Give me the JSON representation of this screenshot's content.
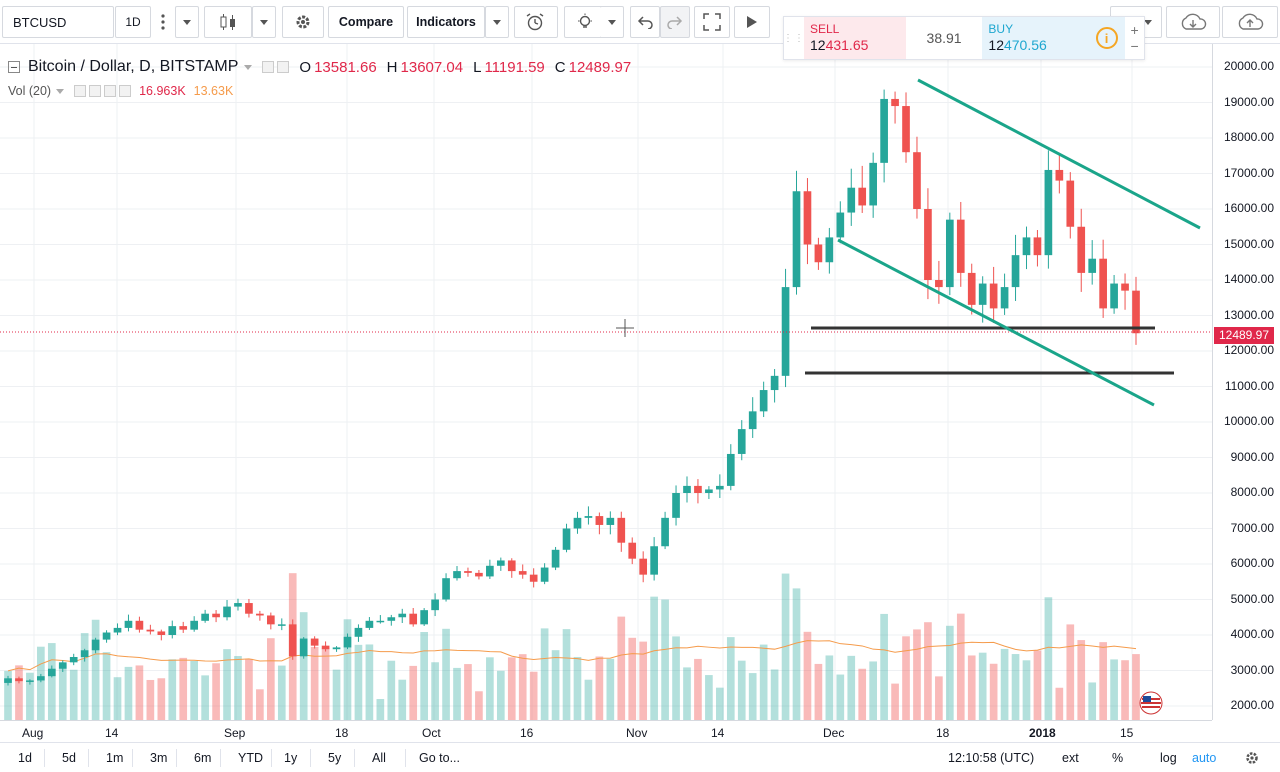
{
  "toolbar": {
    "symbol": "BTCUSD",
    "interval": "1D",
    "compare_label": "Compare",
    "indicators_label": "Indicators"
  },
  "trade": {
    "sell_label": "SELL",
    "sell_price_main": "12",
    "sell_price_hl": "431.65",
    "spread": "38.91",
    "buy_label": "BUY",
    "buy_price_main": "12",
    "buy_price_hl": "470.56",
    "info_icon": "i"
  },
  "legend": {
    "title": "Bitcoin / Dollar, D, BITSTAMP",
    "o_label": "O",
    "o_value": "13581.66",
    "h_label": "H",
    "h_value": "13607.04",
    "l_label": "L",
    "l_value": "11191.59",
    "c_label": "C",
    "c_value": "12489.97",
    "vol_label": "Vol (20)",
    "vol_value": "16.963K",
    "vol_ma": "13.63K"
  },
  "y_axis": [
    "20000.00",
    "19000.00",
    "18000.00",
    "17000.00",
    "16000.00",
    "15000.00",
    "14000.00",
    "13000.00",
    "12000.00",
    "11000.00",
    "10000.00",
    "9000.00",
    "8000.00",
    "7000.00",
    "6000.00",
    "5000.00",
    "4000.00",
    "3000.00",
    "2000.00"
  ],
  "current_price": "12489.97",
  "x_axis": [
    "Aug",
    "14",
    "Sep",
    "18",
    "Oct",
    "16",
    "Nov",
    "14",
    "Dec",
    "18",
    "2018",
    "15"
  ],
  "bottom": {
    "ranges": [
      "1d",
      "5d",
      "1m",
      "3m",
      "6m",
      "YTD",
      "1y",
      "5y",
      "All"
    ],
    "goto": "Go to...",
    "time": "12:10:58 (UTC)",
    "ext": "ext",
    "pct": "%",
    "log": "log",
    "auto": "auto"
  },
  "colors": {
    "up": "#26a69a",
    "down": "#ef5350",
    "accent": "#2196f3"
  },
  "chart_data": {
    "type": "candlestick",
    "y_range": [
      1500,
      20300
    ],
    "candles_close_estimate": [
      2780,
      2700,
      2720,
      2840,
      3050,
      3230,
      3380,
      3570,
      3870,
      4070,
      4200,
      4400,
      4150,
      4100,
      4000,
      4250,
      4150,
      4400,
      4600,
      4500,
      4800,
      4900,
      4600,
      4550,
      4300,
      4300,
      3400,
      3900,
      3700,
      3600,
      3650,
      3950,
      4200,
      4400,
      4400,
      4500,
      4600,
      4300,
      4700,
      5000,
      5600,
      5800,
      5750,
      5650,
      5950,
      6100,
      5800,
      5700,
      5500,
      5900,
      6400,
      7000,
      7300,
      7350,
      7100,
      7300,
      6600,
      6150,
      5700,
      6500,
      7300,
      8000,
      8200,
      8000,
      8100,
      8200,
      9100,
      9800,
      10300,
      10900,
      11300,
      13800,
      16500,
      15000,
      14500,
      15200,
      15900,
      16600,
      16100,
      17300,
      19100,
      18900,
      17600,
      16000,
      14000,
      13800,
      15700,
      14200,
      13300,
      13900,
      13200,
      13800,
      14700,
      15200,
      14700,
      17100,
      16800,
      15500,
      14200,
      14600,
      13200,
      13900,
      13700,
      12500
    ],
    "lines": {
      "support_1": 12650,
      "support_2": 11400,
      "channel_top": [
        [
          19300,
          "Dec 15"
        ],
        [
          15500,
          "Jan 20"
        ]
      ],
      "channel_bottom": [
        [
          15200,
          "Dec 2"
        ],
        [
          10500,
          "Jan 18"
        ]
      ]
    }
  }
}
